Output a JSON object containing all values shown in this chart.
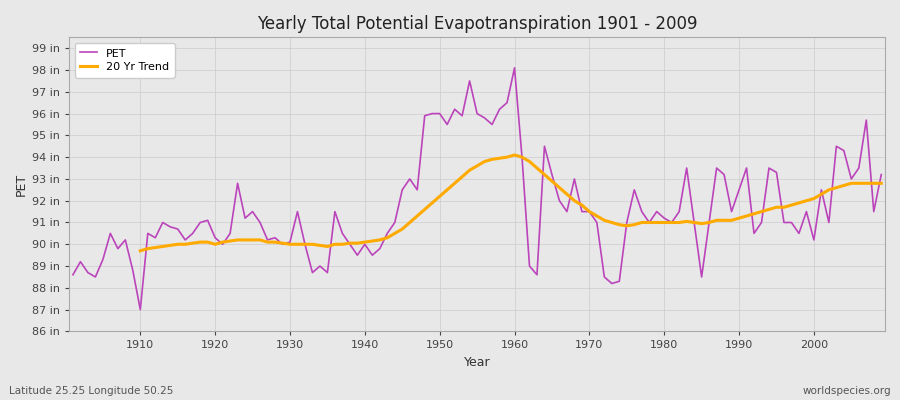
{
  "title": "Yearly Total Potential Evapotranspiration 1901 - 2009",
  "xlabel": "Year",
  "ylabel": "PET",
  "subtitle_left": "Latitude 25.25 Longitude 50.25",
  "subtitle_right": "worldspecies.org",
  "pet_color": "#bb44bb",
  "trend_color": "#ffaa00",
  "bg_color": "#e8e8e8",
  "plot_bg_color": "#e8e8e8",
  "ylim": [
    86,
    99.5
  ],
  "years": [
    1901,
    1902,
    1903,
    1904,
    1905,
    1906,
    1907,
    1908,
    1909,
    1910,
    1911,
    1912,
    1913,
    1914,
    1915,
    1916,
    1917,
    1918,
    1919,
    1920,
    1921,
    1922,
    1923,
    1924,
    1925,
    1926,
    1927,
    1928,
    1929,
    1930,
    1931,
    1932,
    1933,
    1934,
    1935,
    1936,
    1937,
    1938,
    1939,
    1940,
    1941,
    1942,
    1943,
    1944,
    1945,
    1946,
    1947,
    1948,
    1949,
    1950,
    1951,
    1952,
    1953,
    1954,
    1955,
    1956,
    1957,
    1958,
    1959,
    1960,
    1961,
    1962,
    1963,
    1964,
    1965,
    1966,
    1967,
    1968,
    1969,
    1970,
    1971,
    1972,
    1973,
    1974,
    1975,
    1976,
    1977,
    1978,
    1979,
    1980,
    1981,
    1982,
    1983,
    1984,
    1985,
    1986,
    1987,
    1988,
    1989,
    1990,
    1991,
    1992,
    1993,
    1994,
    1995,
    1996,
    1997,
    1998,
    1999,
    2000,
    2001,
    2002,
    2003,
    2004,
    2005,
    2006,
    2007,
    2008,
    2009
  ],
  "pet_values": [
    88.6,
    89.2,
    88.7,
    88.5,
    89.3,
    90.5,
    89.8,
    90.2,
    88.8,
    87.0,
    90.5,
    90.3,
    91.0,
    90.8,
    90.7,
    90.2,
    90.5,
    91.0,
    91.1,
    90.3,
    90.0,
    90.5,
    92.8,
    91.2,
    91.5,
    91.0,
    90.2,
    90.3,
    90.0,
    90.1,
    91.5,
    90.0,
    88.7,
    89.0,
    88.7,
    91.5,
    90.5,
    90.0,
    89.5,
    90.0,
    89.5,
    89.8,
    90.5,
    91.0,
    92.5,
    93.0,
    92.5,
    95.9,
    96.0,
    96.0,
    95.5,
    96.2,
    95.9,
    97.5,
    96.0,
    95.8,
    95.5,
    96.2,
    96.5,
    98.1,
    94.0,
    89.0,
    88.6,
    94.5,
    93.2,
    92.0,
    91.5,
    93.0,
    91.5,
    91.5,
    91.0,
    88.5,
    88.2,
    88.3,
    91.0,
    92.5,
    91.5,
    91.0,
    91.5,
    91.2,
    91.0,
    91.5,
    93.5,
    91.0,
    88.5,
    91.0,
    93.5,
    93.2,
    91.5,
    92.5,
    93.5,
    90.5,
    91.0,
    93.5,
    93.3,
    91.0,
    91.0,
    90.5,
    91.5,
    90.2,
    92.5,
    91.0,
    94.5,
    94.3,
    93.0,
    93.5,
    95.7,
    91.5,
    93.2
  ],
  "trend_values": [
    null,
    null,
    null,
    null,
    null,
    null,
    null,
    null,
    null,
    89.7,
    89.8,
    89.85,
    89.9,
    89.95,
    90.0,
    90.0,
    90.05,
    90.1,
    90.1,
    90.0,
    90.1,
    90.15,
    90.2,
    90.2,
    90.2,
    90.2,
    90.1,
    90.1,
    90.05,
    90.0,
    90.0,
    90.0,
    90.0,
    89.95,
    89.9,
    90.0,
    90.0,
    90.05,
    90.05,
    90.1,
    90.15,
    90.2,
    90.3,
    90.5,
    90.7,
    91.0,
    91.3,
    91.6,
    91.9,
    92.2,
    92.5,
    92.8,
    93.1,
    93.4,
    93.6,
    93.8,
    93.9,
    93.95,
    94.0,
    94.1,
    94.0,
    93.8,
    93.5,
    93.2,
    92.9,
    92.6,
    92.3,
    92.0,
    91.8,
    91.5,
    91.3,
    91.1,
    91.0,
    90.9,
    90.85,
    90.9,
    91.0,
    91.0,
    91.0,
    91.0,
    91.0,
    91.0,
    91.05,
    91.0,
    90.95,
    91.0,
    91.1,
    91.1,
    91.1,
    91.2,
    91.3,
    91.4,
    91.5,
    91.6,
    91.7,
    91.7,
    91.8,
    91.9,
    92.0,
    92.1,
    92.3,
    92.5,
    92.6,
    92.7,
    92.8,
    92.8,
    92.8,
    92.8,
    92.8
  ],
  "yticks": [
    86,
    87,
    88,
    89,
    90,
    91,
    92,
    93,
    94,
    95,
    96,
    97,
    98,
    99
  ],
  "xticks": [
    1910,
    1920,
    1930,
    1940,
    1950,
    1960,
    1970,
    1980,
    1990,
    2000
  ],
  "grid_color": "#cccccc",
  "pet_linewidth": 1.2,
  "trend_linewidth": 2.2
}
